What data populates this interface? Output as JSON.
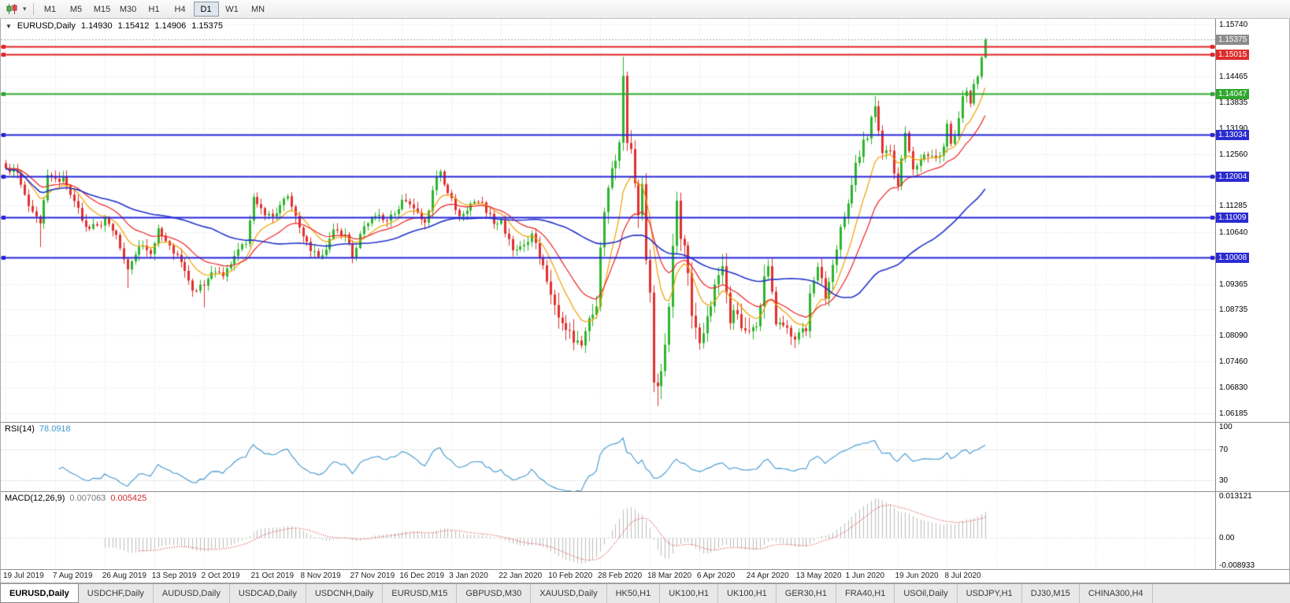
{
  "toolbar": {
    "chart_type_icon": "candlestick-chart-icon",
    "dropdown_icon": "chevron-down-icon",
    "timeframes": [
      {
        "label": "M1",
        "active": false
      },
      {
        "label": "M5",
        "active": false
      },
      {
        "label": "M15",
        "active": false
      },
      {
        "label": "M30",
        "active": false
      },
      {
        "label": "H1",
        "active": false
      },
      {
        "label": "H4",
        "active": false
      },
      {
        "label": "D1",
        "active": true
      },
      {
        "label": "W1",
        "active": false
      },
      {
        "label": "MN",
        "active": false
      }
    ]
  },
  "chart_header": {
    "collapse_icon": "▼",
    "symbol": "EURUSD,Daily",
    "open": "1.14930",
    "high": "1.15412",
    "low": "1.14906",
    "close": "1.15375"
  },
  "price_axis": {
    "ticks": [
      "1.15740",
      "1.14465",
      "1.13835",
      "1.13190",
      "1.12560",
      "1.11285",
      "1.10640",
      "1.09365",
      "1.08735",
      "1.08090",
      "1.07460",
      "1.06830",
      "1.06185"
    ],
    "special_labels": [
      {
        "text": "1.15375",
        "price": 1.15375,
        "bg": "#8c8c8c"
      },
      {
        "text": "1.15015",
        "price": 1.15015,
        "bg": "#dd2c2c"
      },
      {
        "text": "1.14047",
        "price": 1.14047,
        "bg": "#2fa82f"
      },
      {
        "text": "1.13034",
        "price": 1.13034,
        "bg": "#2b2bd0"
      },
      {
        "text": "1.12004",
        "price": 1.12004,
        "bg": "#2b2bd0"
      },
      {
        "text": "1.11009",
        "price": 1.11009,
        "bg": "#2b2bd0"
      },
      {
        "text": "1.10008",
        "price": 1.10008,
        "bg": "#2b2bd0"
      }
    ],
    "scale_max": 1.1588,
    "scale_min": 1.0597
  },
  "chart_data": {
    "type": "candlestick",
    "symbol": "EURUSD",
    "timeframe": "Daily",
    "current": {
      "open": 1.1493,
      "high": 1.15412,
      "low": 1.14906,
      "close": 1.15375
    },
    "candle_up_color": "#2db52d",
    "candle_down_color": "#e03030",
    "horizontal_lines": [
      {
        "price": 1.152,
        "color": "#e22222",
        "width": 2
      },
      {
        "price": 1.15015,
        "color": "#e22222",
        "width": 2
      },
      {
        "price": 1.14047,
        "color": "#2fa82f",
        "width": 2
      },
      {
        "price": 1.13034,
        "color": "#2424d8",
        "width": 2
      },
      {
        "price": 1.12004,
        "color": "#2424d8",
        "width": 2
      },
      {
        "price": 1.11009,
        "color": "#2424d8",
        "width": 2
      },
      {
        "price": 1.10008,
        "color": "#2424d8",
        "width": 2
      }
    ],
    "moving_averages": [
      {
        "name": "fast",
        "period": 10,
        "type": "ema",
        "color": "#f0a000"
      },
      {
        "name": "mid",
        "period": 21,
        "type": "ema",
        "color": "#ee2222"
      },
      {
        "name": "slow",
        "period": 55,
        "type": "sma",
        "color": "#2233cc"
      }
    ],
    "price_path": [
      [
        0,
        1.1221
      ],
      [
        3,
        1.121
      ],
      [
        6,
        1.1128
      ],
      [
        9,
        1.1085
      ],
      [
        11,
        1.1204
      ],
      [
        13,
        1.1195
      ],
      [
        15,
        1.1199
      ],
      [
        18,
        1.114
      ],
      [
        21,
        1.1077
      ],
      [
        24,
        1.108
      ],
      [
        26,
        1.11
      ],
      [
        29,
        1.1057
      ],
      [
        32,
        1.0972
      ],
      [
        35,
        1.1028
      ],
      [
        38,
        1.101
      ],
      [
        40,
        1.1073
      ],
      [
        43,
        1.1031
      ],
      [
        46,
        1.099
      ],
      [
        49,
        1.092
      ],
      [
        52,
        1.0932
      ],
      [
        54,
        1.0965
      ],
      [
        57,
        1.0955
      ],
      [
        60,
        1.1005
      ],
      [
        63,
        1.1035
      ],
      [
        65,
        1.115
      ],
      [
        68,
        1.1105
      ],
      [
        71,
        1.111
      ],
      [
        74,
        1.1152
      ],
      [
        77,
        1.1075
      ],
      [
        80,
        1.1017
      ],
      [
        83,
        1.1007
      ],
      [
        86,
        1.107
      ],
      [
        89,
        1.1058
      ],
      [
        91,
        1.1
      ],
      [
        94,
        1.1078
      ],
      [
        97,
        1.1103
      ],
      [
        100,
        1.1092
      ],
      [
        103,
        1.112
      ],
      [
        104,
        1.1143
      ],
      [
        107,
        1.1122
      ],
      [
        110,
        1.1087
      ],
      [
        113,
        1.1199
      ],
      [
        114,
        1.1213
      ],
      [
        116,
        1.116
      ],
      [
        119,
        1.1103
      ],
      [
        122,
        1.1134
      ],
      [
        125,
        1.1137
      ],
      [
        128,
        1.1084
      ],
      [
        130,
        1.1093
      ],
      [
        133,
        1.1019
      ],
      [
        136,
        1.1032
      ],
      [
        138,
        1.106
      ],
      [
        141,
        1.0982
      ],
      [
        143,
        1.091
      ],
      [
        146,
        1.084
      ],
      [
        149,
        1.0792
      ],
      [
        151,
        1.0785
      ],
      [
        153,
        1.0852
      ],
      [
        155,
        1.0881
      ],
      [
        156,
        1.1026
      ],
      [
        158,
        1.1173
      ],
      [
        160,
        1.1239
      ],
      [
        161,
        1.1284
      ],
      [
        162,
        1.1448
      ],
      [
        163,
        1.1283
      ],
      [
        164,
        1.1268
      ],
      [
        165,
        1.1184
      ],
      [
        166,
        1.1105
      ],
      [
        167,
        1.1182
      ],
      [
        168,
        1.0995
      ],
      [
        169,
        1.0915
      ],
      [
        170,
        1.0694
      ],
      [
        171,
        1.0685
      ],
      [
        172,
        1.0722
      ],
      [
        173,
        1.0787
      ],
      [
        174,
        1.088
      ],
      [
        175,
        1.103
      ],
      [
        176,
        1.1141
      ],
      [
        177,
        1.1047
      ],
      [
        178,
        1.1031
      ],
      [
        179,
        1.0963
      ],
      [
        180,
        1.0858
      ],
      [
        182,
        1.0791
      ],
      [
        184,
        1.0857
      ],
      [
        186,
        1.0935
      ],
      [
        188,
        1.098
      ],
      [
        190,
        1.084
      ],
      [
        192,
        1.0862
      ],
      [
        194,
        1.0822
      ],
      [
        195,
        1.082
      ],
      [
        197,
        1.0832
      ],
      [
        199,
        1.0955
      ],
      [
        200,
        1.098
      ],
      [
        202,
        1.0837
      ],
      [
        204,
        1.0834
      ],
      [
        206,
        1.0807
      ],
      [
        208,
        1.0817
      ],
      [
        210,
        1.082
      ],
      [
        211,
        1.0913
      ],
      [
        213,
        1.0978
      ],
      [
        215,
        1.09
      ],
      [
        217,
        1.0983
      ],
      [
        219,
        1.1076
      ],
      [
        220,
        1.1101
      ],
      [
        221,
        1.1134
      ],
      [
        223,
        1.1234
      ],
      [
        225,
        1.1291
      ],
      [
        226,
        1.1294
      ],
      [
        228,
        1.1373
      ],
      [
        230,
        1.1258
      ],
      [
        232,
        1.1264
      ],
      [
        234,
        1.1177
      ],
      [
        236,
        1.1308
      ],
      [
        238,
        1.1218
      ],
      [
        240,
        1.1242
      ],
      [
        242,
        1.1251
      ],
      [
        244,
        1.1248
      ],
      [
        246,
        1.1274
      ],
      [
        247,
        1.133
      ],
      [
        248,
        1.1281
      ],
      [
        249,
        1.13
      ],
      [
        250,
        1.1344
      ],
      [
        251,
        1.1398
      ],
      [
        252,
        1.1411
      ],
      [
        253,
        1.138
      ],
      [
        254,
        1.1428
      ],
      [
        255,
        1.1446
      ],
      [
        256,
        1.1493
      ],
      [
        257,
        1.15375
      ]
    ],
    "wick_overrides": {
      "9": {
        "l": 1.1027
      },
      "32": {
        "l": 1.0926
      },
      "52": {
        "l": 1.0879
      },
      "151": {
        "l": 1.0778
      },
      "162": {
        "h": 1.1495
      },
      "171": {
        "l": 1.0636
      },
      "228": {
        "h": 1.1398
      },
      "257": {
        "o": 1.1493,
        "h": 1.15412,
        "l": 1.14906,
        "c": 1.15375
      }
    }
  },
  "rsi": {
    "name": "RSI(14)",
    "value": "78.0918",
    "period": 14,
    "color": "#3f97d0",
    "axis": [
      {
        "text": "100",
        "v": 100
      },
      {
        "text": "70",
        "v": 70
      },
      {
        "text": "30",
        "v": 30
      }
    ],
    "levels": [
      70,
      30
    ],
    "scale_max": 105,
    "scale_min": 15
  },
  "macd": {
    "name": "MACD(12,26,9)",
    "value_main": "0.007063",
    "value_signal": "0.005425",
    "fast": 12,
    "slow": 26,
    "signal": 9,
    "hist_color": "#bdbdbd",
    "signal_color": "#d42a2a",
    "axis": [
      {
        "text": "0.013121",
        "v": 0.013121
      },
      {
        "text": "0.00",
        "v": 0
      },
      {
        "text": "-0.008933",
        "v": -0.008933
      }
    ],
    "scale_max": 0.0136,
    "scale_min": -0.0093
  },
  "time_axis": {
    "bars_per_label": 13,
    "labels": [
      "19 Jul 2019",
      "7 Aug 2019",
      "26 Aug 2019",
      "13 Sep 2019",
      "2 Oct 2019",
      "21 Oct 2019",
      "8 Nov 2019",
      "27 Nov 2019",
      "16 Dec 2019",
      "3 Jan 2020",
      "22 Jan 2020",
      "10 Feb 2020",
      "28 Feb 2020",
      "18 Mar 2020",
      "6 Apr 2020",
      "24 Apr 2020",
      "13 May 2020",
      "1 Jun 2020",
      "19 Jun 2020",
      "8 Jul 2020"
    ]
  },
  "tabs": [
    {
      "label": "EURUSD,Daily",
      "active": true
    },
    {
      "label": "USDCHF,Daily",
      "active": false
    },
    {
      "label": "AUDUSD,Daily",
      "active": false
    },
    {
      "label": "USDCAD,Daily",
      "active": false
    },
    {
      "label": "USDCNH,Daily",
      "active": false
    },
    {
      "label": "EURUSD,M15",
      "active": false
    },
    {
      "label": "GBPUSD,M30",
      "active": false
    },
    {
      "label": "XAUUSD,Daily",
      "active": false
    },
    {
      "label": "HK50,H1",
      "active": false
    },
    {
      "label": "UK100,H1",
      "active": false
    },
    {
      "label": "UK100,H1",
      "active": false
    },
    {
      "label": "GER30,H1",
      "active": false
    },
    {
      "label": "FRA40,H1",
      "active": false
    },
    {
      "label": "USOil,Daily",
      "active": false
    },
    {
      "label": "USDJPY,H1",
      "active": false
    },
    {
      "label": "DJ30,M15",
      "active": false
    },
    {
      "label": "CHINA300,H4",
      "active": false
    }
  ]
}
